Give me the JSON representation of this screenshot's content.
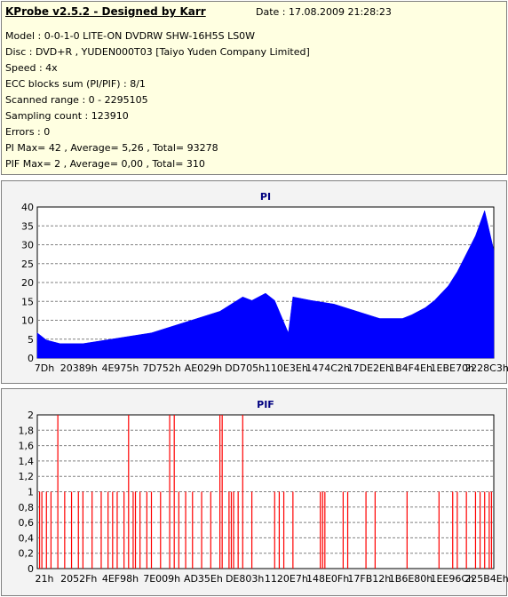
{
  "info": {
    "title": "KProbe v2.5.2 - Designed by Karr",
    "date": "Date : 17.08.2009 21:28:23",
    "lines": [
      "Model : 0-0-1-0 LITE-ON DVDRW SHW-16H5S  LS0W",
      "Disc : DVD+R , YUDEN000T03 [Taiyo Yuden Company Limited]",
      "Speed : 4x",
      "ECC blocks sum (PI/PIF) : 8/1",
      "Scanned range : 0 - 2295105",
      "Sampling count : 123910",
      "Errors : 0",
      "PI Max= 42 , Average= 5,26 , Total= 93278",
      "PIF Max= 2 , Average= 0,00 , Total= 310"
    ]
  },
  "chart_data": [
    {
      "type": "area",
      "title": "PI",
      "ylim": [
        0,
        42
      ],
      "yticks": [
        "0",
        "5",
        "10",
        "15",
        "20",
        "25",
        "30",
        "35",
        "40"
      ],
      "xticks": [
        "7Dh",
        "20389h",
        "4E975h",
        "7D752h",
        "AE029h",
        "DD705h",
        "110E3Eh",
        "1474C2h",
        "17DE2Eh",
        "1B4F4Eh",
        "1EBE70h",
        "2228C3h"
      ],
      "grid": true,
      "color": "#0000ff",
      "x": [
        0,
        0.02,
        0.05,
        0.1,
        0.15,
        0.2,
        0.25,
        0.3,
        0.35,
        0.4,
        0.45,
        0.47,
        0.5,
        0.52,
        0.55,
        0.56,
        0.6,
        0.65,
        0.7,
        0.75,
        0.8,
        0.82,
        0.85,
        0.87,
        0.9,
        0.92,
        0.94,
        0.96,
        0.98,
        1.0
      ],
      "values": [
        7,
        5,
        4,
        4,
        5,
        6,
        7,
        9,
        11,
        13,
        17,
        16,
        18,
        16,
        7,
        17,
        16,
        15,
        13,
        11,
        11,
        12,
        14,
        16,
        20,
        24,
        29,
        34,
        41,
        30
      ]
    },
    {
      "type": "bar",
      "title": "PIF",
      "ylim": [
        0,
        2
      ],
      "yticks": [
        "0",
        "0,2",
        "0,4",
        "0,6",
        "0,8",
        "1",
        "1,2",
        "1,4",
        "1,6",
        "1,8",
        "2"
      ],
      "xticks": [
        "21h",
        "2052Fh",
        "4EF98h",
        "7E009h",
        "AD35Eh",
        "DE803h",
        "1120E7h",
        "148E0Fh",
        "17FB12h",
        "1B6E80h",
        "1EE96Ch",
        "225B4Eh"
      ],
      "grid": true,
      "color": "#ff0000",
      "x": [
        0.005,
        0.01,
        0.02,
        0.03,
        0.045,
        0.06,
        0.075,
        0.09,
        0.1,
        0.12,
        0.14,
        0.155,
        0.165,
        0.175,
        0.19,
        0.2,
        0.21,
        0.215,
        0.225,
        0.24,
        0.25,
        0.27,
        0.29,
        0.3,
        0.31,
        0.325,
        0.34,
        0.36,
        0.38,
        0.4,
        0.405,
        0.42,
        0.425,
        0.43,
        0.44,
        0.45,
        0.47,
        0.52,
        0.53,
        0.54,
        0.56,
        0.62,
        0.625,
        0.63,
        0.67,
        0.68,
        0.72,
        0.74,
        0.81,
        0.88,
        0.91,
        0.92,
        0.94,
        0.96,
        0.97,
        0.98,
        0.99,
        0.995
      ],
      "values": [
        1,
        1,
        1,
        1,
        2,
        1,
        1,
        1,
        1,
        1,
        1,
        1,
        1,
        1,
        1,
        2,
        1,
        1,
        1,
        1,
        1,
        1,
        2,
        2,
        1,
        1,
        1,
        1,
        1,
        2,
        2,
        1,
        1,
        1,
        1,
        2,
        1,
        1,
        1,
        1,
        1,
        1,
        1,
        1,
        1,
        1,
        1,
        1,
        1,
        1,
        1,
        1,
        1,
        1,
        1,
        1,
        1,
        1
      ]
    }
  ]
}
